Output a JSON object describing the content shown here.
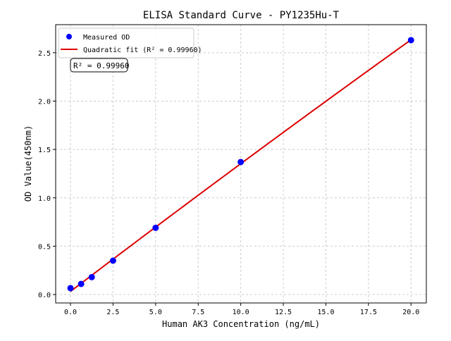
{
  "chart_data": {
    "type": "scatter",
    "title": "ELISA Standard Curve - PY1235Hu-T",
    "xlabel": "Human AK3 Concentration (ng/mL)",
    "ylabel": "OD Value(450nm)",
    "xlim": [
      -0.87,
      20.9
    ],
    "ylim": [
      -0.087,
      2.79
    ],
    "xticks": [
      0.0,
      2.5,
      5.0,
      7.5,
      10.0,
      12.5,
      15.0,
      17.5,
      20.0
    ],
    "yticks": [
      0.0,
      0.5,
      1.0,
      1.5,
      2.0,
      2.5
    ],
    "grid": true,
    "legend_position": "top-left",
    "series": [
      {
        "name": "Measured OD",
        "kind": "scatter",
        "color": "#0000ff",
        "x": [
          0,
          0.625,
          1.25,
          2.5,
          5,
          10,
          20
        ],
        "y": [
          0.066,
          0.11,
          0.18,
          0.35,
          0.69,
          1.37,
          2.63
        ]
      },
      {
        "name": "Quadratic fit (R² = 0.99960)",
        "kind": "line",
        "color": "#dd0000",
        "fit": "quadratic"
      }
    ],
    "annotation": "R² = 0.99960"
  }
}
